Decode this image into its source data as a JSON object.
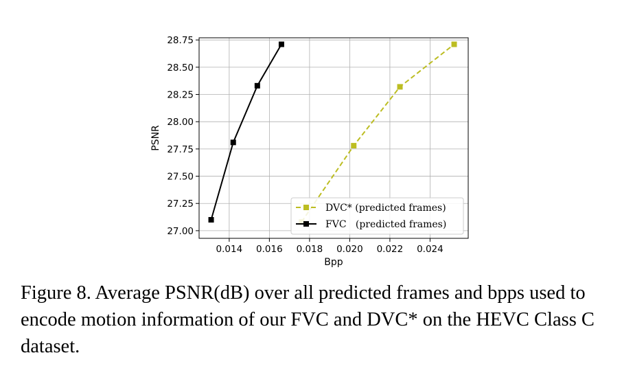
{
  "chart_data": {
    "type": "line",
    "xlabel": "Bpp",
    "ylabel": "PSNR",
    "xlim": [
      0.0125,
      0.0259
    ],
    "ylim": [
      26.93,
      28.77
    ],
    "x_ticks": [
      0.014,
      0.016,
      0.018,
      0.02,
      0.022,
      0.024
    ],
    "x_tick_labels": [
      "0.014",
      "0.016",
      "0.018",
      "0.020",
      "0.022",
      "0.024"
    ],
    "y_ticks": [
      27.0,
      27.25,
      27.5,
      27.75,
      28.0,
      28.25,
      28.5,
      28.75
    ],
    "y_tick_labels": [
      "27.00",
      "27.25",
      "27.50",
      "27.75",
      "28.00",
      "28.25",
      "28.50",
      "28.75"
    ],
    "grid": true,
    "legend_position": "lower-right",
    "series": [
      {
        "name": "DVC* (predicted frames)",
        "color": "#bcbd22",
        "linestyle": "dashed",
        "marker": "square",
        "x": [
          0.0176,
          0.0202,
          0.0225,
          0.0252
        ],
        "y": [
          27.08,
          27.78,
          28.32,
          28.71
        ]
      },
      {
        "name": "FVC   (predicted frames)",
        "color": "#000000",
        "linestyle": "solid",
        "marker": "square",
        "x": [
          0.0131,
          0.0142,
          0.0154,
          0.0166
        ],
        "y": [
          27.1,
          27.81,
          28.33,
          28.71
        ]
      }
    ]
  },
  "caption": "Figure 8. Average PSNR(dB) over all predicted frames and bpps used to encode motion information of our FVC and DVC* on the HEVC Class C dataset."
}
